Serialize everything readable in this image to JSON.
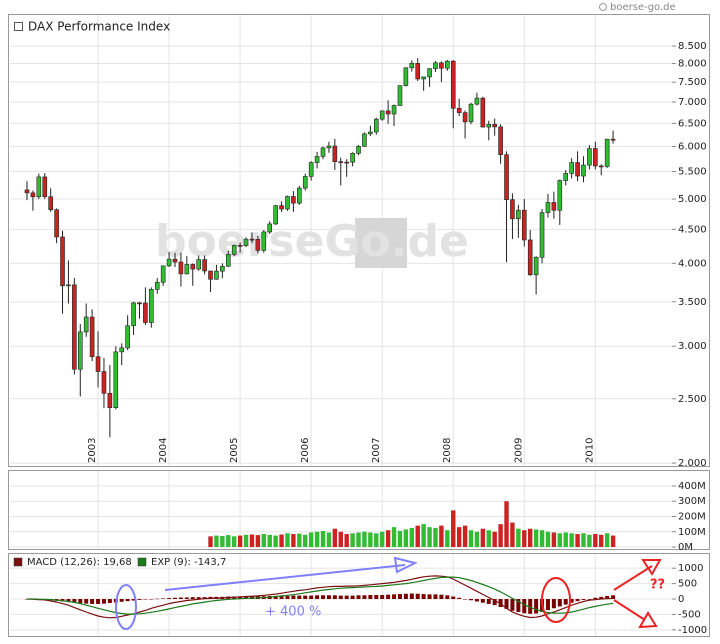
{
  "chart_data": [
    {
      "type": "candlestick",
      "title": "DAX Performance Index",
      "watermark": "boerseGo.de",
      "source": "boerse-go.de",
      "log_scale": true,
      "grid": true,
      "up_color": "#33bb33",
      "down_color": "#cc2222",
      "categories": [
        null,
        null,
        null,
        null,
        null,
        null,
        null,
        null,
        null,
        null,
        null,
        null,
        "2003",
        null,
        null,
        null,
        null,
        null,
        null,
        null,
        null,
        null,
        null,
        null,
        "2004",
        null,
        null,
        null,
        null,
        null,
        null,
        null,
        null,
        null,
        null,
        null,
        "2005",
        null,
        null,
        null,
        null,
        null,
        null,
        null,
        null,
        null,
        null,
        null,
        "2006",
        null,
        null,
        null,
        null,
        null,
        null,
        null,
        null,
        null,
        null,
        null,
        "2007",
        null,
        null,
        null,
        null,
        null,
        null,
        null,
        null,
        null,
        null,
        null,
        "2008",
        null,
        null,
        null,
        null,
        null,
        null,
        null,
        null,
        null,
        null,
        null,
        "2009",
        null,
        null,
        null,
        null,
        null,
        null,
        null,
        null,
        null,
        null,
        null,
        "2010",
        null,
        null,
        null
      ],
      "ohlc": [
        [
          5160,
          5320,
          4980,
          5108
        ],
        [
          5108,
          5150,
          4800,
          5039
        ],
        [
          5039,
          5460,
          5000,
          5398
        ],
        [
          5398,
          5470,
          5000,
          5041
        ],
        [
          5041,
          5190,
          4780,
          4818
        ],
        [
          4818,
          4840,
          4290,
          4383
        ],
        [
          4383,
          4480,
          3360,
          3700
        ],
        [
          3700,
          4040,
          3480,
          3712
        ],
        [
          3712,
          3800,
          2720,
          2770
        ],
        [
          2770,
          3240,
          2520,
          3153
        ],
        [
          3153,
          3480,
          3100,
          3320
        ],
        [
          3320,
          3410,
          2850,
          2893
        ],
        [
          2893,
          3160,
          2600,
          2748
        ],
        [
          2748,
          2880,
          2420,
          2548
        ],
        [
          2548,
          2810,
          2188,
          2424
        ],
        [
          2424,
          3000,
          2410,
          2942
        ],
        [
          2942,
          3030,
          2810,
          2983
        ],
        [
          2983,
          3340,
          2960,
          3221
        ],
        [
          3221,
          3500,
          3120,
          3487
        ],
        [
          3487,
          3500,
          3300,
          3485
        ],
        [
          3485,
          3680,
          3230,
          3257
        ],
        [
          3257,
          3680,
          3200,
          3655
        ],
        [
          3655,
          3800,
          3600,
          3746
        ],
        [
          3746,
          3970,
          3700,
          3965
        ],
        [
          3965,
          4160,
          3950,
          4059
        ],
        [
          4059,
          4150,
          3950,
          4018
        ],
        [
          4018,
          4150,
          3690,
          3856
        ],
        [
          3856,
          4100,
          3850,
          3985
        ],
        [
          3985,
          4000,
          3700,
          3921
        ],
        [
          3921,
          4110,
          3900,
          4052
        ],
        [
          4052,
          4110,
          3850,
          3895
        ],
        [
          3895,
          3900,
          3620,
          3785
        ],
        [
          3785,
          3980,
          3780,
          3893
        ],
        [
          3893,
          4000,
          3800,
          3960
        ],
        [
          3960,
          4180,
          3950,
          4126
        ],
        [
          4126,
          4270,
          4100,
          4256
        ],
        [
          4256,
          4300,
          4150,
          4254
        ],
        [
          4254,
          4380,
          4230,
          4350
        ],
        [
          4350,
          4450,
          4290,
          4348
        ],
        [
          4348,
          4400,
          4140,
          4184
        ],
        [
          4184,
          4490,
          4150,
          4460
        ],
        [
          4460,
          4630,
          4430,
          4586
        ],
        [
          4586,
          4900,
          4570,
          4886
        ],
        [
          4886,
          4960,
          4780,
          4829
        ],
        [
          4829,
          5060,
          4800,
          5044
        ],
        [
          5044,
          5140,
          4780,
          4929
        ],
        [
          4929,
          5230,
          4900,
          5193
        ],
        [
          5193,
          5460,
          5150,
          5408
        ],
        [
          5408,
          5700,
          5330,
          5674
        ],
        [
          5674,
          5890,
          5560,
          5796
        ],
        [
          5796,
          6000,
          5740,
          5970
        ],
        [
          5970,
          6100,
          5870,
          6009
        ],
        [
          6009,
          6160,
          5530,
          5692
        ],
        [
          5692,
          5770,
          5240,
          5683
        ],
        [
          5683,
          5740,
          5400,
          5682
        ],
        [
          5682,
          5880,
          5600,
          5860
        ],
        [
          5860,
          6030,
          5820,
          6004
        ],
        [
          6004,
          6300,
          5990,
          6268
        ],
        [
          6268,
          6450,
          6220,
          6309
        ],
        [
          6309,
          6630,
          6250,
          6597
        ],
        [
          6597,
          6800,
          6560,
          6789
        ],
        [
          6789,
          7040,
          6490,
          6715
        ],
        [
          6715,
          6940,
          6440,
          6917
        ],
        [
          6917,
          7420,
          6910,
          7409
        ],
        [
          7409,
          7900,
          7390,
          7883
        ],
        [
          7883,
          8090,
          7780,
          8007
        ],
        [
          8007,
          8150,
          7530,
          7584
        ],
        [
          7584,
          7650,
          7280,
          7638
        ],
        [
          7638,
          7870,
          7380,
          7861
        ],
        [
          7861,
          8070,
          7770,
          8020
        ],
        [
          8020,
          8060,
          7500,
          7871
        ],
        [
          7871,
          8100,
          7800,
          8067
        ],
        [
          8067,
          8100,
          6390,
          6851
        ],
        [
          6851,
          7080,
          6670,
          6748
        ],
        [
          6748,
          6800,
          6170,
          6535
        ],
        [
          6535,
          6980,
          6480,
          6949
        ],
        [
          6949,
          7230,
          6920,
          7096
        ],
        [
          7096,
          7130,
          6410,
          6418
        ],
        [
          6418,
          6560,
          6130,
          6479
        ],
        [
          6479,
          6610,
          6230,
          6422
        ],
        [
          6422,
          6480,
          5650,
          5831
        ],
        [
          5831,
          5900,
          4014,
          4988
        ],
        [
          4988,
          5100,
          4350,
          4669
        ],
        [
          4669,
          4900,
          4370,
          4810
        ],
        [
          4810,
          5000,
          4240,
          4338
        ],
        [
          4338,
          4490,
          3830,
          3844
        ],
        [
          3844,
          4100,
          3590,
          4085
        ],
        [
          4085,
          4830,
          4000,
          4770
        ],
        [
          4770,
          5090,
          4690,
          4941
        ],
        [
          4941,
          5130,
          4670,
          4809
        ],
        [
          4809,
          5350,
          4570,
          5332
        ],
        [
          5332,
          5530,
          5240,
          5465
        ],
        [
          5465,
          5760,
          5370,
          5675
        ],
        [
          5675,
          5900,
          5320,
          5415
        ],
        [
          5415,
          5800,
          5300,
          5625
        ],
        [
          5625,
          6030,
          5540,
          5957
        ],
        [
          5957,
          6100,
          5540,
          5608
        ],
        [
          5608,
          5640,
          5430,
          5598
        ],
        [
          5598,
          6160,
          5570,
          6154
        ],
        [
          6154,
          6340,
          6060,
          6136
        ]
      ],
      "ylim": [
        1980,
        9370
      ],
      "yticks": [
        {
          "value": 2000,
          "label": "2.000"
        },
        {
          "value": 2500,
          "label": "2.500"
        },
        {
          "value": 3000,
          "label": "3.000"
        },
        {
          "value": 3500,
          "label": "3.500"
        },
        {
          "value": 4000,
          "label": "4.000"
        },
        {
          "value": 4500,
          "label": "4.500"
        },
        {
          "value": 5000,
          "label": "5.000"
        },
        {
          "value": 5500,
          "label": "5.500"
        },
        {
          "value": 6000,
          "label": "6.000"
        },
        {
          "value": 6500,
          "label": "6.500"
        },
        {
          "value": 7000,
          "label": "7.000"
        },
        {
          "value": 7500,
          "label": "7.500"
        },
        {
          "value": 8000,
          "label": "8.000"
        },
        {
          "value": 8500,
          "label": "8.500"
        }
      ]
    },
    {
      "type": "bar",
      "grid": true,
      "values": [
        null,
        null,
        null,
        null,
        null,
        null,
        null,
        null,
        null,
        null,
        null,
        null,
        null,
        null,
        null,
        null,
        null,
        null,
        null,
        null,
        null,
        null,
        null,
        null,
        null,
        null,
        null,
        null,
        null,
        null,
        null,
        70,
        75,
        72,
        78,
        70,
        75,
        80,
        82,
        78,
        85,
        80,
        75,
        82,
        90,
        85,
        88,
        80,
        95,
        100,
        105,
        95,
        120,
        100,
        85,
        90,
        95,
        100,
        95,
        90,
        100,
        110,
        130,
        105,
        115,
        125,
        140,
        150,
        130,
        125,
        140,
        110,
        240,
        130,
        140,
        110,
        100,
        120,
        110,
        100,
        150,
        300,
        160,
        120,
        110,
        120,
        115,
        110,
        100,
        95,
        90,
        95,
        90,
        85,
        90,
        80,
        85,
        80,
        90,
        75
      ],
      "ylim": [
        -13,
        485
      ],
      "yticks": [
        {
          "value": 0,
          "label": "0M"
        },
        {
          "value": 100,
          "label": "100M"
        },
        {
          "value": 200,
          "label": "200M"
        },
        {
          "value": 300,
          "label": "300M"
        },
        {
          "value": 400,
          "label": "400M"
        }
      ]
    },
    {
      "type": "line",
      "grid": true,
      "series": [
        {
          "name": "MACD (12,26): 19,68",
          "color": "#7a1010",
          "values": [
            0,
            -10,
            -20,
            -30,
            -60,
            -100,
            -150,
            -200,
            -280,
            -350,
            -420,
            -490,
            -550,
            -590,
            -610,
            -600,
            -560,
            -520,
            -480,
            -420,
            -370,
            -300,
            -250,
            -200,
            -150,
            -110,
            -80,
            -50,
            -30,
            -10,
            10,
            20,
            30,
            40,
            50,
            60,
            70,
            80,
            90,
            100,
            120,
            140,
            160,
            190,
            220,
            250,
            280,
            300,
            330,
            360,
            380,
            400,
            410,
            410,
            420,
            420,
            430,
            440,
            460,
            480,
            500,
            520,
            540,
            570,
            600,
            640,
            680,
            720,
            740,
            750,
            740,
            720,
            650,
            550,
            450,
            350,
            250,
            150,
            50,
            -50,
            -150,
            -300,
            -420,
            -500,
            -560,
            -600,
            -590,
            -550,
            -480,
            -420,
            -350,
            -280,
            -200,
            -140,
            -80,
            -40,
            -20,
            0,
            10,
            19.68
          ]
        },
        {
          "name": "EXP (9): -143,7",
          "color": "#1d7a1d",
          "values": [
            0,
            0,
            -5,
            -10,
            -20,
            -35,
            -55,
            -80,
            -110,
            -150,
            -200,
            -250,
            -300,
            -350,
            -400,
            -440,
            -470,
            -490,
            -490,
            -480,
            -460,
            -430,
            -400,
            -360,
            -320,
            -280,
            -240,
            -200,
            -160,
            -130,
            -100,
            -70,
            -50,
            -30,
            -10,
            0,
            10,
            20,
            30,
            40,
            50,
            60,
            80,
            100,
            120,
            140,
            170,
            200,
            230,
            260,
            290,
            310,
            330,
            350,
            360,
            370,
            380,
            390,
            400,
            410,
            420,
            440,
            460,
            480,
            500,
            530,
            560,
            600,
            640,
            670,
            700,
            710,
            710,
            690,
            650,
            600,
            540,
            470,
            400,
            320,
            230,
            130,
            20,
            -80,
            -180,
            -270,
            -340,
            -400,
            -440,
            -460,
            -460,
            -450,
            -420,
            -380,
            -330,
            -280,
            -240,
            -200,
            -170,
            -143.7
          ]
        }
      ],
      "histogram": {
        "color": "#7a0000",
        "values": [
          0,
          -10,
          -20,
          -30,
          -40,
          -60,
          -80,
          -100,
          -120,
          -140,
          -150,
          -160,
          -160,
          -150,
          -130,
          -110,
          -90,
          -70,
          -50,
          -30,
          -10,
          0,
          10,
          20,
          30,
          40,
          50,
          50,
          60,
          60,
          60,
          70,
          70,
          70,
          80,
          80,
          80,
          80,
          90,
          90,
          90,
          100,
          100,
          100,
          100,
          110,
          110,
          110,
          110,
          120,
          120,
          120,
          120,
          110,
          110,
          110,
          120,
          120,
          130,
          130,
          130,
          140,
          150,
          160,
          170,
          180,
          170,
          160,
          150,
          150,
          140,
          120,
          80,
          40,
          0,
          -40,
          -80,
          -120,
          -160,
          -200,
          -260,
          -320,
          -380,
          -420,
          -460,
          -480,
          -470,
          -420,
          -360,
          -300,
          -240,
          -180,
          -120,
          -70,
          -30,
          0,
          40,
          70,
          100,
          120
        ]
      },
      "annotations": [
        "+ 400 %",
        "??"
      ],
      "ylim": [
        -1200,
        1460
      ],
      "yticks": [
        1000,
        500,
        0,
        -500,
        -1000
      ]
    }
  ]
}
